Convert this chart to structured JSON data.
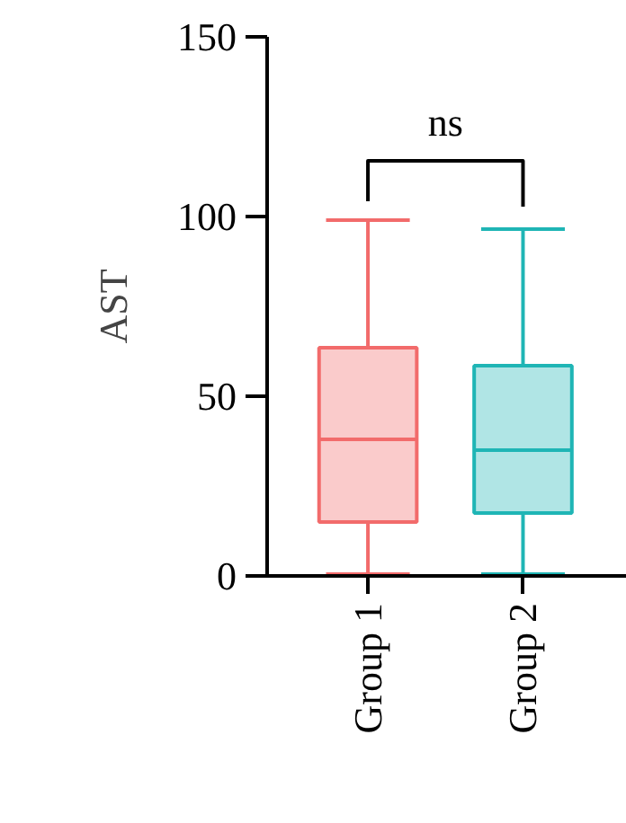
{
  "chart_data": {
    "type": "box",
    "ylabel": "AST",
    "categories": [
      "Group 1",
      "Group 2"
    ],
    "boxes": [
      {
        "low": 0.5,
        "q1": 15,
        "median": 38,
        "q3": 63.5,
        "high": 99
      },
      {
        "low": 0.5,
        "q1": 17.5,
        "median": 35,
        "q3": 58.5,
        "high": 96.5
      }
    ],
    "colors": [
      "#f26b6b",
      "#1fb5b5"
    ],
    "ylim": [
      0,
      150
    ],
    "yticks": [
      0,
      50,
      100,
      150
    ],
    "annotations": [
      "ns"
    ]
  }
}
